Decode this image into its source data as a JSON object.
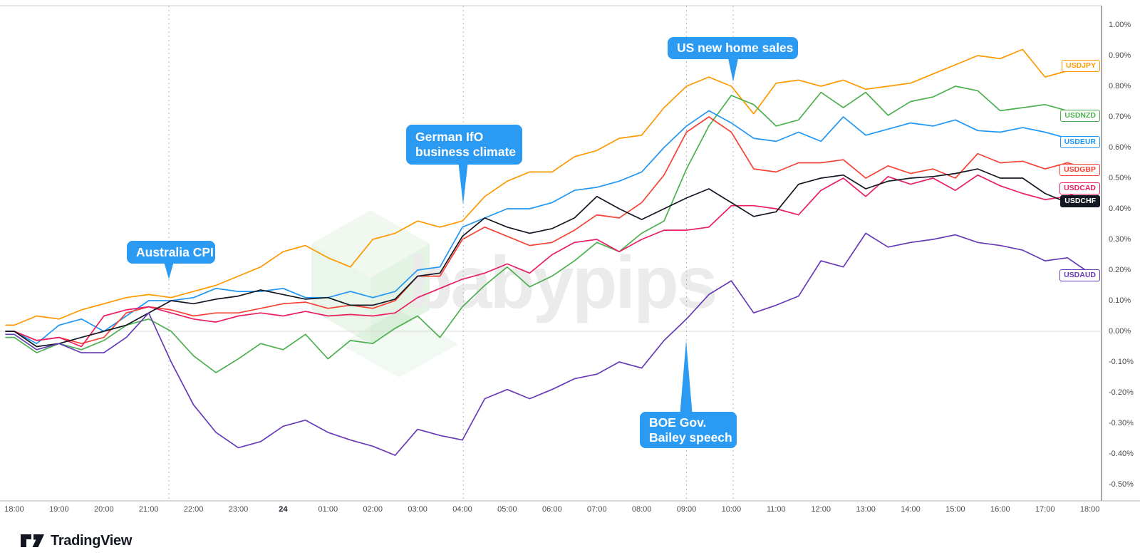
{
  "watermark": {
    "text": "babypips"
  },
  "footer": {
    "logo_text": "TradingView"
  },
  "chart_data": {
    "type": "line",
    "x_step_hours": 0.5,
    "x_range_hours": [
      0,
      24
    ],
    "grid": "dashed vertical lines at event times only",
    "legend_position": "right-edge-pills",
    "x_axis": {
      "ticks": [
        "18:00",
        "19:00",
        "20:00",
        "21:00",
        "22:00",
        "23:00",
        "24",
        "01:00",
        "02:00",
        "03:00",
        "04:00",
        "05:00",
        "06:00",
        "07:00",
        "08:00",
        "09:00",
        "10:00",
        "11:00",
        "12:00",
        "13:00",
        "14:00",
        "15:00",
        "16:00",
        "17:00",
        "18:00"
      ],
      "bold_tick": "24"
    },
    "y_axis": {
      "side": "right",
      "ylim": [
        -0.5,
        1.0
      ],
      "ticks": [
        {
          "label": "1.00%",
          "value": 1.0
        },
        {
          "label": "0.90%",
          "value": 0.9
        },
        {
          "label": "0.80%",
          "value": 0.8
        },
        {
          "label": "0.70%",
          "value": 0.7
        },
        {
          "label": "0.60%",
          "value": 0.6
        },
        {
          "label": "0.50%",
          "value": 0.5
        },
        {
          "label": "0.40%",
          "value": 0.4
        },
        {
          "label": "0.30%",
          "value": 0.3
        },
        {
          "label": "0.20%",
          "value": 0.2
        },
        {
          "label": "0.10%",
          "value": 0.1
        },
        {
          "label": "0.00%",
          "value": 0.0
        },
        {
          "label": "-0.10%",
          "value": -0.1
        },
        {
          "label": "-0.20%",
          "value": -0.2
        },
        {
          "label": "-0.30%",
          "value": -0.3
        },
        {
          "label": "-0.40%",
          "value": -0.4
        },
        {
          "label": "-0.50%",
          "value": -0.5
        }
      ]
    },
    "zero_line_value": 0,
    "callout_color": "#2B9AF3",
    "series": [
      {
        "name": "USDJPY",
        "color": "#FF9800",
        "values": [
          0.02,
          0.05,
          0.04,
          0.07,
          0.09,
          0.11,
          0.12,
          0.11,
          0.13,
          0.15,
          0.18,
          0.21,
          0.26,
          0.28,
          0.24,
          0.21,
          0.3,
          0.32,
          0.36,
          0.34,
          0.36,
          0.44,
          0.49,
          0.52,
          0.52,
          0.57,
          0.59,
          0.63,
          0.64,
          0.73,
          0.8,
          0.83,
          0.8,
          0.71,
          0.81,
          0.82,
          0.8,
          0.82,
          0.79,
          0.8,
          0.81,
          0.84,
          0.87,
          0.9,
          0.89,
          0.92,
          0.83,
          0.85,
          0.87
        ]
      },
      {
        "name": "USDNZD",
        "color": "#4CAF50",
        "values": [
          -0.02,
          -0.07,
          -0.04,
          -0.06,
          -0.03,
          0.02,
          0.04,
          0.0,
          -0.08,
          -0.135,
          -0.09,
          -0.04,
          -0.06,
          -0.01,
          -0.09,
          -0.03,
          -0.04,
          0.01,
          0.05,
          -0.02,
          0.08,
          0.15,
          0.21,
          0.145,
          0.18,
          0.23,
          0.29,
          0.26,
          0.32,
          0.36,
          0.53,
          0.67,
          0.77,
          0.74,
          0.67,
          0.69,
          0.78,
          0.73,
          0.78,
          0.705,
          0.75,
          0.765,
          0.8,
          0.785,
          0.72,
          0.73,
          0.74,
          0.72,
          0.71
        ]
      },
      {
        "name": "USDEUR",
        "color": "#2196F3",
        "values": [
          0.0,
          -0.04,
          0.02,
          0.04,
          0.0,
          0.05,
          0.1,
          0.1,
          0.11,
          0.14,
          0.13,
          0.13,
          0.14,
          0.11,
          0.11,
          0.13,
          0.11,
          0.13,
          0.2,
          0.21,
          0.34,
          0.37,
          0.4,
          0.4,
          0.42,
          0.46,
          0.47,
          0.49,
          0.52,
          0.6,
          0.67,
          0.72,
          0.68,
          0.63,
          0.62,
          0.65,
          0.62,
          0.7,
          0.64,
          0.66,
          0.68,
          0.67,
          0.69,
          0.655,
          0.65,
          0.665,
          0.65,
          0.63,
          0.62
        ]
      },
      {
        "name": "USDGBP",
        "color": "#F44336",
        "values": [
          0.0,
          -0.03,
          -0.02,
          -0.04,
          -0.02,
          0.06,
          0.08,
          0.07,
          0.05,
          0.06,
          0.06,
          0.075,
          0.09,
          0.095,
          0.075,
          0.085,
          0.075,
          0.1,
          0.18,
          0.18,
          0.3,
          0.34,
          0.31,
          0.28,
          0.29,
          0.33,
          0.38,
          0.37,
          0.42,
          0.51,
          0.65,
          0.7,
          0.65,
          0.53,
          0.52,
          0.55,
          0.55,
          0.56,
          0.5,
          0.54,
          0.515,
          0.53,
          0.5,
          0.58,
          0.55,
          0.555,
          0.53,
          0.55,
          0.53
        ]
      },
      {
        "name": "USDCAD",
        "color": "#E91E63",
        "values": [
          0.0,
          -0.03,
          -0.02,
          -0.05,
          0.05,
          0.07,
          0.08,
          0.06,
          0.04,
          0.03,
          0.05,
          0.06,
          0.05,
          0.065,
          0.05,
          0.055,
          0.05,
          0.06,
          0.11,
          0.14,
          0.17,
          0.19,
          0.22,
          0.19,
          0.25,
          0.29,
          0.3,
          0.26,
          0.3,
          0.33,
          0.33,
          0.34,
          0.41,
          0.41,
          0.4,
          0.38,
          0.46,
          0.5,
          0.44,
          0.505,
          0.48,
          0.5,
          0.46,
          0.51,
          0.475,
          0.45,
          0.43,
          0.44,
          0.47
        ]
      },
      {
        "name": "USDCHF",
        "color": "#131722",
        "values": [
          0.0,
          -0.05,
          -0.04,
          -0.02,
          0.0,
          0.02,
          0.06,
          0.1,
          0.09,
          0.105,
          0.115,
          0.135,
          0.12,
          0.105,
          0.11,
          0.085,
          0.085,
          0.105,
          0.18,
          0.19,
          0.31,
          0.37,
          0.34,
          0.32,
          0.335,
          0.37,
          0.44,
          0.4,
          0.365,
          0.4,
          0.435,
          0.465,
          0.42,
          0.375,
          0.39,
          0.48,
          0.5,
          0.51,
          0.465,
          0.49,
          0.5,
          0.505,
          0.515,
          0.53,
          0.5,
          0.5,
          0.45,
          0.42,
          0.44
        ]
      },
      {
        "name": "USDAUD",
        "color": "#673AB7",
        "values": [
          -0.01,
          -0.06,
          -0.04,
          -0.07,
          -0.07,
          -0.02,
          0.06,
          -0.1,
          -0.24,
          -0.33,
          -0.38,
          -0.36,
          -0.31,
          -0.29,
          -0.33,
          -0.355,
          -0.375,
          -0.405,
          -0.32,
          -0.34,
          -0.355,
          -0.22,
          -0.19,
          -0.22,
          -0.19,
          -0.155,
          -0.14,
          -0.1,
          -0.12,
          -0.03,
          0.04,
          0.12,
          0.165,
          0.06,
          0.085,
          0.115,
          0.23,
          0.21,
          0.32,
          0.275,
          0.29,
          0.3,
          0.315,
          0.29,
          0.28,
          0.265,
          0.23,
          0.24,
          0.19
        ]
      }
    ],
    "events": [
      {
        "name": "australia-cpi",
        "lines": [
          "Australia CPI"
        ],
        "t_hours": 3.45,
        "pointer": "down"
      },
      {
        "name": "german-ifo-business-climate",
        "lines": [
          "German IfO",
          "business climate"
        ],
        "t_hours": 10.02,
        "pointer": "down"
      },
      {
        "name": "us-new-home-sales",
        "lines": [
          "US new home sales"
        ],
        "t_hours": 16.04,
        "pointer": "down"
      },
      {
        "name": "boe-gov-bailey-speech",
        "lines": [
          "BOE Gov.",
          "Bailey speech"
        ],
        "t_hours": 15.0,
        "pointer": "up"
      }
    ]
  }
}
